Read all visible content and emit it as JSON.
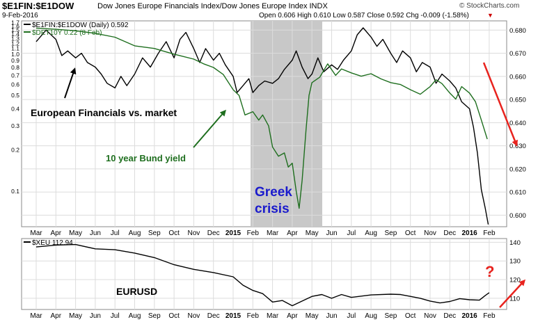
{
  "header": {
    "symbol": "$E1FIN:$E1DOW",
    "description": "Dow Jones Europe Financials Index/Dow Jones Europe Index  INDX",
    "date": "9-Feb-2016",
    "ohlc": "Open 0.606  High 0.610  Low 0.587  Close 0.592  Chg -0.009 (-1.58%)",
    "brand": "© StockCharts.com",
    "brand_mark": "▼"
  },
  "annotations": {
    "fin_vs_market": "European Financials vs. market",
    "bund_label": "10 year Bund yield",
    "greek": "Greek",
    "crisis": "crisis",
    "eurusd": "EURUSD",
    "question": "?"
  },
  "chart_data": [
    {
      "type": "line",
      "legend": [
        "$E1FIN:$E1DOW (Daily) 0.592",
        "$DET10Y 0.22 (8 Feb)"
      ],
      "x_ticks": [
        "Mar",
        "Apr",
        "May",
        "Jun",
        "Jul",
        "Aug",
        "Sep",
        "Oct",
        "Nov",
        "Dec",
        "2015",
        "Feb",
        "Mar",
        "Apr",
        "May",
        "Jun",
        "Jul",
        "Aug",
        "Sep",
        "Oct",
        "Nov",
        "Dec",
        "2016",
        "Feb"
      ],
      "right_axis": {
        "ticks": [
          "0.680",
          "0.670",
          "0.660",
          "0.650",
          "0.640",
          "0.630",
          "0.620",
          "0.610",
          "0.600"
        ],
        "range": [
          0.595,
          0.684
        ]
      },
      "left_axis": {
        "scale": "log",
        "ticks": [
          "1.7",
          "1.6",
          "1.5",
          "1.4",
          "1.3",
          "1.2",
          "1.1",
          "1.0",
          "0.9",
          "0.8",
          "0.7",
          "0.6",
          "0.5",
          "0.4",
          "0.3",
          "0.2",
          "0.1"
        ],
        "range": [
          0.055,
          1.75
        ]
      },
      "shaded_region": {
        "from": "Jan 2015",
        "to": "May 2015",
        "label": "Greek crisis"
      },
      "series": [
        {
          "name": "$E1FIN:$E1DOW (Daily) 0.592",
          "color": "#000000",
          "axis": "right",
          "points": [
            [
              0,
              0.675
            ],
            [
              0.5,
              0.68
            ],
            [
              1,
              0.676
            ],
            [
              1.3,
              0.669
            ],
            [
              1.6,
              0.671
            ],
            [
              2,
              0.668
            ],
            [
              2.3,
              0.67
            ],
            [
              2.6,
              0.666
            ],
            [
              3,
              0.664
            ],
            [
              3.3,
              0.661
            ],
            [
              3.6,
              0.657
            ],
            [
              4,
              0.655
            ],
            [
              4.3,
              0.66
            ],
            [
              4.6,
              0.656
            ],
            [
              5,
              0.661
            ],
            [
              5.4,
              0.668
            ],
            [
              5.8,
              0.664
            ],
            [
              6.2,
              0.67
            ],
            [
              6.6,
              0.675
            ],
            [
              7,
              0.668
            ],
            [
              7.3,
              0.676
            ],
            [
              7.6,
              0.679
            ],
            [
              8,
              0.672
            ],
            [
              8.3,
              0.666
            ],
            [
              8.6,
              0.672
            ],
            [
              9,
              0.667
            ],
            [
              9.3,
              0.67
            ],
            [
              9.6,
              0.665
            ],
            [
              10,
              0.66
            ],
            [
              10.2,
              0.653
            ],
            [
              10.5,
              0.656
            ],
            [
              10.8,
              0.659
            ],
            [
              11,
              0.653
            ],
            [
              11.3,
              0.656
            ],
            [
              11.6,
              0.658
            ],
            [
              12,
              0.657
            ],
            [
              12.3,
              0.659
            ],
            [
              12.6,
              0.663
            ],
            [
              13,
              0.667
            ],
            [
              13.2,
              0.671
            ],
            [
              13.5,
              0.664
            ],
            [
              13.8,
              0.659
            ],
            [
              14,
              0.661
            ],
            [
              14.3,
              0.668
            ],
            [
              14.6,
              0.662
            ],
            [
              15,
              0.665
            ],
            [
              15.3,
              0.663
            ],
            [
              15.6,
              0.667
            ],
            [
              16,
              0.671
            ],
            [
              16.3,
              0.678
            ],
            [
              16.6,
              0.681
            ],
            [
              17,
              0.677
            ],
            [
              17.3,
              0.673
            ],
            [
              17.6,
              0.676
            ],
            [
              18,
              0.67
            ],
            [
              18.3,
              0.666
            ],
            [
              18.6,
              0.671
            ],
            [
              19,
              0.668
            ],
            [
              19.3,
              0.662
            ],
            [
              19.6,
              0.666
            ],
            [
              20,
              0.664
            ],
            [
              20.3,
              0.657
            ],
            [
              20.6,
              0.661
            ],
            [
              21,
              0.658
            ],
            [
              21.3,
              0.655
            ],
            [
              21.6,
              0.649
            ],
            [
              22,
              0.646
            ],
            [
              22.2,
              0.638
            ],
            [
              22.4,
              0.627
            ],
            [
              22.6,
              0.611
            ],
            [
              22.8,
              0.603
            ],
            [
              22.95,
              0.596
            ]
          ]
        },
        {
          "name": "$DET10Y 0.22 (8 Feb)",
          "color": "#1e6e1e",
          "axis": "left",
          "points": [
            [
              0,
              1.55
            ],
            [
              1,
              1.52
            ],
            [
              2,
              1.48
            ],
            [
              3,
              1.42
            ],
            [
              4,
              1.33
            ],
            [
              5,
              1.15
            ],
            [
              6,
              1.1
            ],
            [
              7,
              1.0
            ],
            [
              8,
              0.92
            ],
            [
              8.5,
              0.85
            ],
            [
              9,
              0.8
            ],
            [
              9.5,
              0.71
            ],
            [
              10,
              0.55
            ],
            [
              10.3,
              0.5
            ],
            [
              10.6,
              0.36
            ],
            [
              11,
              0.38
            ],
            [
              11.3,
              0.33
            ],
            [
              11.5,
              0.36
            ],
            [
              11.8,
              0.3
            ],
            [
              12,
              0.21
            ],
            [
              12.3,
              0.18
            ],
            [
              12.6,
              0.19
            ],
            [
              12.8,
              0.15
            ],
            [
              13,
              0.16
            ],
            [
              13.2,
              0.1
            ],
            [
              13.35,
              0.075
            ],
            [
              13.5,
              0.12
            ],
            [
              13.7,
              0.28
            ],
            [
              13.85,
              0.5
            ],
            [
              14,
              0.62
            ],
            [
              14.4,
              0.68
            ],
            [
              14.8,
              0.85
            ],
            [
              15.2,
              0.7
            ],
            [
              15.5,
              0.78
            ],
            [
              16,
              0.73
            ],
            [
              16.5,
              0.69
            ],
            [
              17,
              0.72
            ],
            [
              17.5,
              0.66
            ],
            [
              18,
              0.62
            ],
            [
              18.5,
              0.6
            ],
            [
              19,
              0.55
            ],
            [
              19.5,
              0.51
            ],
            [
              20,
              0.58
            ],
            [
              20.3,
              0.65
            ],
            [
              20.6,
              0.61
            ],
            [
              21,
              0.52
            ],
            [
              21.3,
              0.47
            ],
            [
              21.6,
              0.58
            ],
            [
              22,
              0.52
            ],
            [
              22.3,
              0.45
            ],
            [
              22.6,
              0.33
            ],
            [
              22.9,
              0.24
            ]
          ]
        }
      ]
    },
    {
      "type": "line",
      "legend": [
        "$XEU 112.94"
      ],
      "x_ticks": [
        "Mar",
        "Apr",
        "May",
        "Jun",
        "Jul",
        "Aug",
        "Sep",
        "Oct",
        "Nov",
        "Dec",
        "2015",
        "Feb",
        "Mar",
        "Apr",
        "May",
        "Jun",
        "Jul",
        "Aug",
        "Sep",
        "Oct",
        "Nov",
        "Dec",
        "2016",
        "Feb"
      ],
      "right_axis": {
        "ticks": [
          "140",
          "130",
          "120",
          "110"
        ],
        "range": [
          104,
          142
        ]
      },
      "series": [
        {
          "name": "$XEU 112.94",
          "color": "#000000",
          "points": [
            [
              0,
              137.5
            ],
            [
              1,
              138.5
            ],
            [
              2,
              138.8
            ],
            [
              3,
              136.5
            ],
            [
              4,
              136.0
            ],
            [
              5,
              134.2
            ],
            [
              6,
              131.8
            ],
            [
              7,
              128.0
            ],
            [
              8,
              125.5
            ],
            [
              9,
              123.8
            ],
            [
              10,
              121.5
            ],
            [
              10.5,
              117
            ],
            [
              11,
              114.2
            ],
            [
              11.5,
              112.5
            ],
            [
              12,
              108.0
            ],
            [
              12.5,
              108.8
            ],
            [
              13,
              106.0
            ],
            [
              13.5,
              108.5
            ],
            [
              14,
              111.0
            ],
            [
              14.5,
              112.0
            ],
            [
              15,
              110.0
            ],
            [
              15.5,
              112.0
            ],
            [
              16,
              110.5
            ],
            [
              17,
              111.8
            ],
            [
              18,
              112.2
            ],
            [
              18.5,
              112.0
            ],
            [
              19,
              111.0
            ],
            [
              19.5,
              110.0
            ],
            [
              20,
              108.5
            ],
            [
              20.5,
              107.5
            ],
            [
              21,
              108.3
            ],
            [
              21.5,
              109.8
            ],
            [
              22,
              109.2
            ],
            [
              22.5,
              109.0
            ],
            [
              22.8,
              111.5
            ],
            [
              23,
              113.0
            ]
          ]
        }
      ]
    }
  ]
}
